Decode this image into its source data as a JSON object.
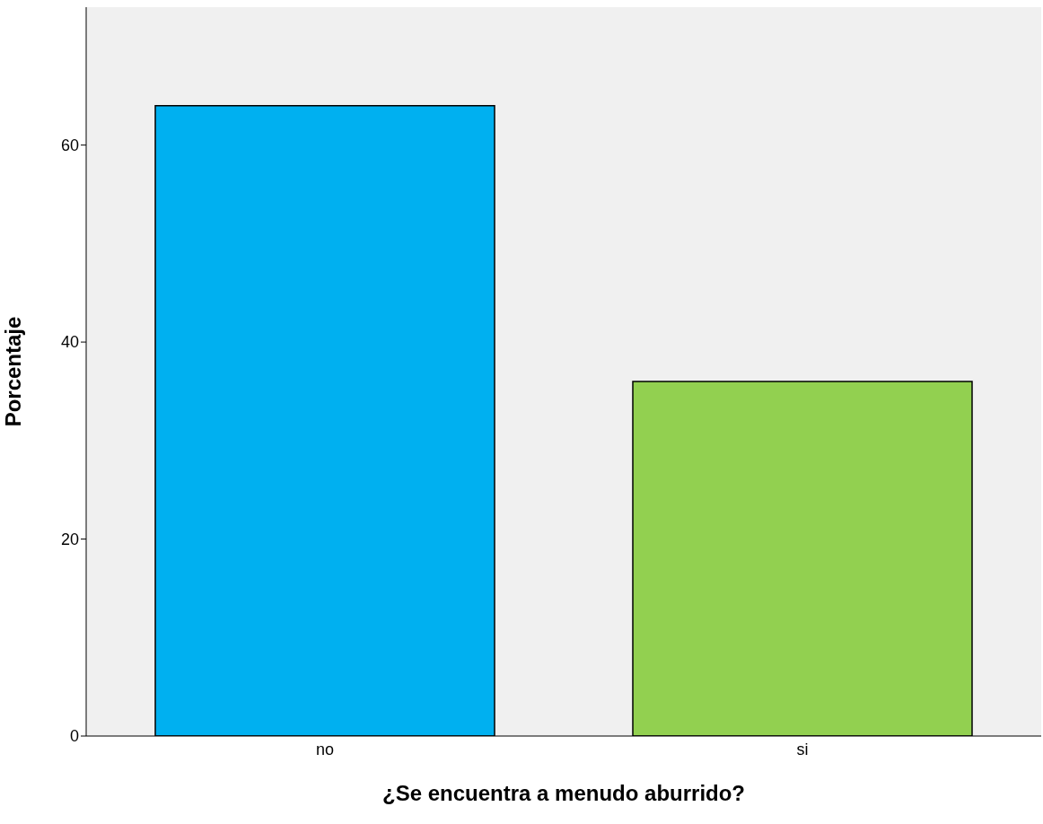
{
  "chart_data": {
    "type": "bar",
    "xlabel": "¿Se encuentra a menudo aburrido?",
    "ylabel": "Porcentaje",
    "categories": [
      "no",
      "si"
    ],
    "values": [
      64,
      36
    ],
    "colors": [
      "#00b0f0",
      "#92d050"
    ],
    "ylim": [
      0,
      74
    ],
    "yticks": [
      0,
      20,
      40,
      60
    ],
    "grid": false
  }
}
